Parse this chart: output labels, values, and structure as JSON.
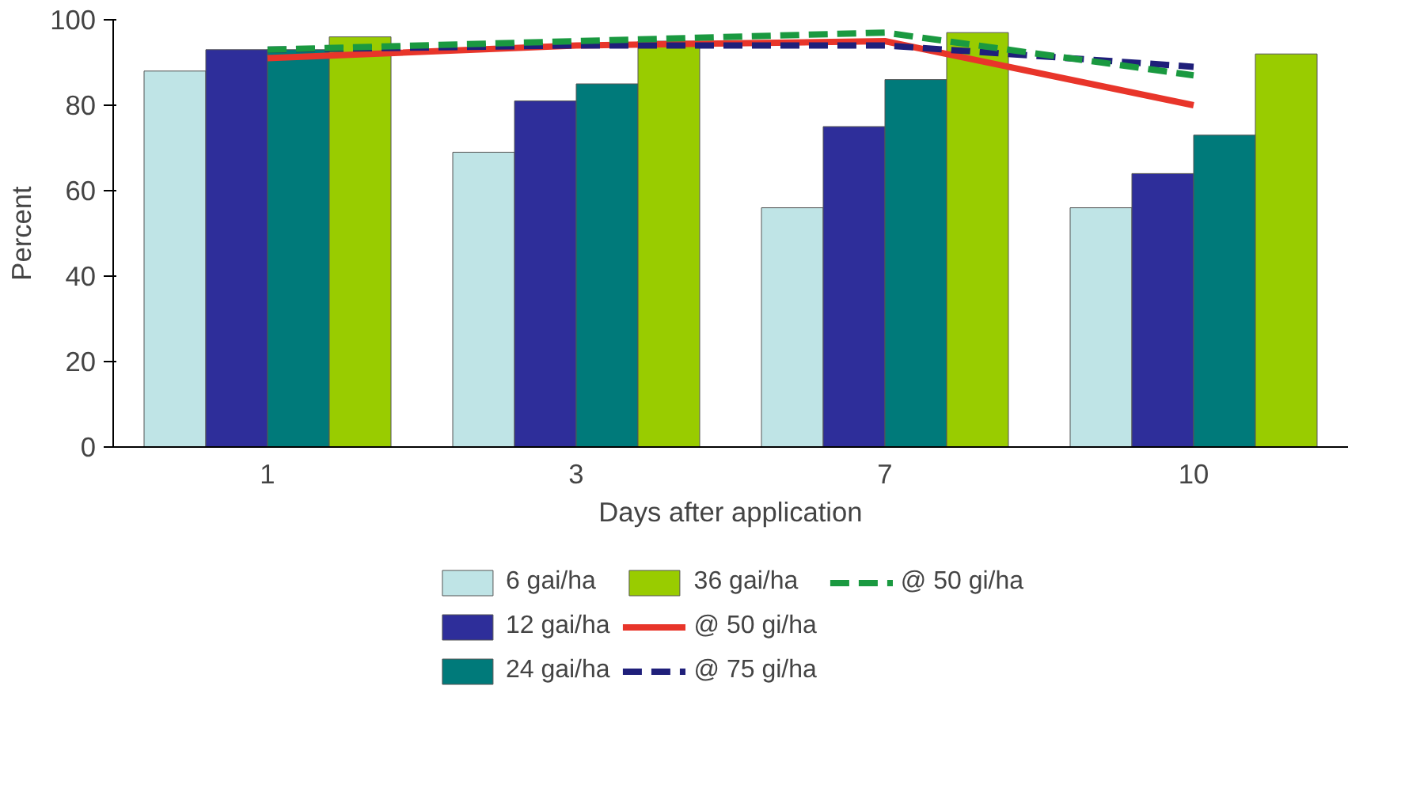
{
  "chart_data": {
    "type": "bar",
    "xlabel": "Days after application",
    "ylabel": "Percent",
    "categories": [
      "1",
      "3",
      "7",
      "10"
    ],
    "ylim": [
      0,
      100
    ],
    "yticks": [
      0,
      20,
      40,
      60,
      80,
      100
    ],
    "grid": false,
    "legend": "bottom",
    "marker": "none",
    "series": [
      {
        "name": "6 gai/ha",
        "color": "#bfe4e6",
        "values": [
          88,
          69,
          56,
          56
        ]
      },
      {
        "name": "12 gai/ha",
        "color": "#2e2e9a",
        "values": [
          93,
          81,
          75,
          64
        ]
      },
      {
        "name": "24 gai/ha",
        "color": "#007a7a",
        "values": [
          93,
          85,
          86,
          73
        ]
      },
      {
        "name": "36 gai/ha",
        "color": "#99cc00",
        "values": [
          96,
          95,
          97,
          92
        ]
      },
      {
        "type": "line",
        "name": "@ 50 gi/ha",
        "color": "#e8352a",
        "line_style": "solid",
        "values": [
          91,
          94,
          95,
          80
        ]
      },
      {
        "type": "line",
        "name": "@ 75 gi/ha",
        "color": "#1f1f7a",
        "line_style": "dashed",
        "values": [
          93,
          94,
          94,
          89
        ]
      },
      {
        "type": "line",
        "name": "@ 50 gi/ha",
        "color": "#1a9940",
        "line_style": "dashed",
        "values": [
          93,
          95,
          97,
          87
        ]
      }
    ]
  }
}
